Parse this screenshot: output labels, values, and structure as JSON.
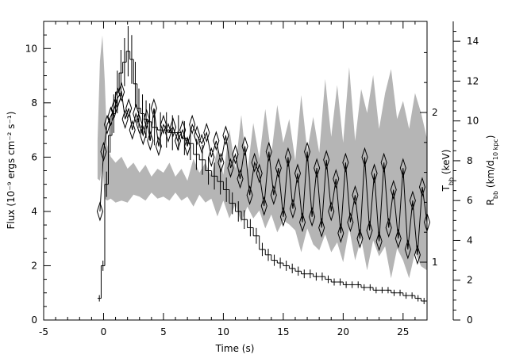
{
  "chart_data": {
    "type": "line",
    "xlabel": "Time (s)",
    "ylabel_left": "Flux (10⁻⁹ ergs cm⁻² s⁻¹)",
    "ylabel_right_1": "T",
    "ylabel_right_1_sub": "bb",
    "ylabel_right_1_unit": " (keV)",
    "ylabel_right_2": "R",
    "ylabel_right_2_sub": "bb",
    "ylabel_right_2_unit_pre": " (km/d",
    "ylabel_right_2_unit_sub": "10 kpc",
    "ylabel_right_2_unit_post": ")",
    "xlim": [
      -5,
      27
    ],
    "ylim_flux": [
      0,
      11
    ],
    "ylim_radius": [
      0,
      15
    ],
    "x_ticks": [
      "-5",
      "0",
      "5",
      "10",
      "15",
      "20",
      "25"
    ],
    "y_ticks_flux": [
      "0",
      "2",
      "4",
      "6",
      "8",
      "10"
    ],
    "y_ticks_radius": [
      "0",
      "2",
      "4",
      "6",
      "8",
      "10",
      "12",
      "14"
    ],
    "t_ticks": [
      "1",
      "2"
    ],
    "series": [
      {
        "description_key": "flux",
        "style": "histogram",
        "x": [
          -0.5,
          -0.2,
          0.1,
          0.4,
          0.7,
          1.0,
          1.3,
          1.6,
          1.9,
          2.2,
          2.5,
          2.8,
          3.1,
          3.4,
          3.7,
          4.0,
          4.5,
          5,
          5.5,
          6,
          6.5,
          7,
          7.5,
          8,
          8.5,
          9,
          9.5,
          10,
          10.5,
          11,
          11.5,
          12,
          12.5,
          13,
          13.5,
          14,
          14.5,
          15,
          15.5,
          16,
          16.5,
          17,
          17.5,
          18,
          18.5,
          19,
          19.5,
          20,
          20.5,
          21,
          21.5,
          22,
          22.5,
          23,
          23.5,
          24,
          24.5,
          25,
          25.5,
          26,
          26.5,
          27
        ],
        "y": [
          0.8,
          2.0,
          5.0,
          6.8,
          7.6,
          8.4,
          9.1,
          9.5,
          9.9,
          9.6,
          8.7,
          7.8,
          7.6,
          7.4,
          7.3,
          7.1,
          7.0,
          7.0,
          6.9,
          6.9,
          6.7,
          6.5,
          6.1,
          5.9,
          5.5,
          5.3,
          5.1,
          4.8,
          4.3,
          4.0,
          3.7,
          3.4,
          3.1,
          2.6,
          2.4,
          2.2,
          2.1,
          2.0,
          1.9,
          1.8,
          1.7,
          1.7,
          1.6,
          1.6,
          1.5,
          1.4,
          1.4,
          1.3,
          1.3,
          1.3,
          1.2,
          1.2,
          1.1,
          1.1,
          1.1,
          1.0,
          1.0,
          0.9,
          0.9,
          0.8,
          0.7,
          0.6
        ]
      },
      {
        "description_key": "temperature",
        "style": "diamond-line",
        "x": [
          -0.3,
          0.0,
          0.3,
          0.6,
          0.9,
          1.2,
          1.5,
          1.8,
          2.1,
          2.4,
          2.7,
          3.0,
          3.3,
          3.6,
          3.9,
          4.2,
          4.6,
          5.0,
          5.4,
          5.8,
          6.2,
          6.6,
          7.0,
          7.4,
          7.8,
          8.2,
          8.6,
          9.0,
          9.4,
          9.8,
          10.2,
          10.6,
          11.0,
          11.4,
          11.8,
          12.2,
          12.6,
          13.0,
          13.4,
          13.8,
          14.2,
          14.6,
          15.0,
          15.4,
          15.8,
          16.2,
          16.6,
          17.0,
          17.4,
          17.8,
          18.2,
          18.6,
          19.0,
          19.4,
          19.8,
          20.2,
          20.6,
          21.0,
          21.4,
          21.8,
          22.2,
          22.6,
          23.0,
          23.4,
          23.8,
          24.2,
          24.6,
          25.0,
          25.4,
          25.8,
          26.2,
          26.6,
          27.0
        ],
        "y": [
          4.0,
          6.2,
          7.2,
          7.5,
          7.8,
          8.2,
          8.4,
          7.4,
          7.8,
          7.0,
          7.6,
          7.2,
          6.8,
          7.4,
          6.6,
          7.8,
          6.4,
          7.2,
          6.9,
          7.1,
          6.6,
          7.0,
          6.4,
          7.2,
          6.8,
          6.5,
          6.9,
          6.0,
          6.6,
          5.8,
          6.8,
          5.6,
          6.1,
          5.2,
          6.4,
          4.6,
          5.8,
          5.4,
          4.2,
          6.2,
          4.6,
          5.6,
          3.8,
          6.0,
          4.1,
          5.4,
          3.6,
          6.2,
          3.8,
          5.6,
          3.4,
          5.9,
          4.0,
          5.2,
          3.2,
          5.8,
          3.6,
          4.6,
          3.0,
          6.0,
          3.3,
          5.4,
          2.9,
          5.8,
          3.4,
          4.8,
          3.0,
          5.6,
          2.6,
          4.4,
          2.4,
          4.9,
          3.6
        ]
      },
      {
        "description_key": "radius-band",
        "style": "band",
        "x": [
          -0.5,
          -0.3,
          -0.1,
          0.1,
          0.3,
          0.6,
          1.0,
          1.5,
          2,
          2.5,
          3,
          3.5,
          4,
          4.5,
          5,
          5.5,
          6,
          6.5,
          7,
          7.5,
          8,
          8.5,
          9,
          9.5,
          10,
          10.5,
          11,
          11.5,
          12,
          12.5,
          13,
          13.5,
          14,
          14.5,
          15,
          15.5,
          16,
          16.5,
          17,
          17.5,
          18,
          18.5,
          19,
          19.5,
          20,
          20.5,
          21,
          21.5,
          22,
          22.5,
          23,
          23.5,
          24,
          24.5,
          25,
          25.5,
          26,
          26.5,
          27
        ],
        "upper": [
          9.0,
          13.0,
          14.3,
          12.0,
          8.8,
          8.2,
          7.9,
          8.2,
          7.6,
          7.9,
          7.4,
          7.8,
          7.2,
          7.6,
          7.4,
          7.9,
          7.2,
          7.6,
          7.0,
          8.1,
          7.4,
          7.9,
          7.2,
          8.6,
          7.3,
          9.6,
          7.6,
          10.3,
          7.4,
          9.9,
          8.1,
          10.6,
          8.3,
          10.8,
          8.9,
          10.1,
          8.0,
          11.3,
          8.5,
          10.2,
          8.4,
          12.1,
          9.2,
          11.8,
          8.9,
          12.7,
          9.0,
          11.6,
          10.4,
          12.3,
          9.6,
          11.4,
          12.6,
          10.1,
          11.0,
          9.6,
          11.4,
          10.4,
          9.1
        ],
        "lower": [
          7.1,
          7.0,
          7.8,
          6.1,
          6.0,
          6.1,
          5.9,
          6.0,
          5.9,
          6.3,
          6.2,
          6.0,
          6.4,
          6.1,
          6.2,
          6.0,
          6.4,
          6.0,
          6.2,
          5.7,
          6.3,
          5.9,
          6.1,
          5.2,
          6.0,
          5.1,
          5.8,
          4.9,
          5.7,
          5.1,
          5.5,
          4.6,
          5.3,
          4.4,
          5.0,
          4.8,
          4.5,
          3.4,
          4.6,
          3.8,
          3.5,
          4.3,
          3.4,
          3.9,
          2.9,
          4.6,
          3.0,
          4.1,
          2.5,
          4.0,
          3.2,
          3.7,
          2.1,
          3.6,
          3.0,
          2.1,
          3.4,
          2.7,
          2.5
        ]
      }
    ],
    "grid": false,
    "legend": "none"
  }
}
